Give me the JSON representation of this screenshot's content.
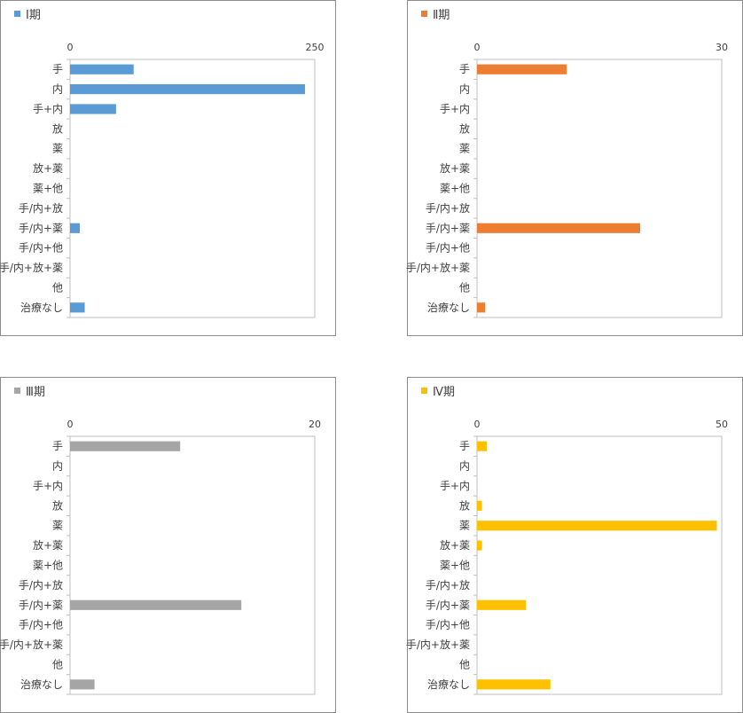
{
  "chart_data": [
    {
      "type": "bar",
      "orientation": "horizontal",
      "categories": [
        "手",
        "内",
        "手+内",
        "放",
        "薬",
        "放+薬",
        "薬+他",
        "手/内+放",
        "手/内+薬",
        "手/内+他",
        "手/内+放+薬",
        "他",
        "治療なし"
      ],
      "series": [
        {
          "name": "Ⅰ期",
          "values": [
            65,
            240,
            47,
            0,
            0,
            0,
            0,
            0,
            10,
            0,
            0,
            0,
            15
          ]
        }
      ],
      "xlim": [
        0,
        250
      ],
      "xticks": [
        "0",
        "250"
      ],
      "color": "#5b9bd5",
      "legend": "top-left"
    },
    {
      "type": "bar",
      "orientation": "horizontal",
      "categories": [
        "手",
        "内",
        "手+内",
        "放",
        "薬",
        "放+薬",
        "薬+他",
        "手/内+放",
        "手/内+薬",
        "手/内+他",
        "手/内+放+薬",
        "他",
        "治療なし"
      ],
      "series": [
        {
          "name": "Ⅱ期",
          "values": [
            11,
            0,
            0,
            0,
            0,
            0,
            0,
            0,
            20,
            0,
            0,
            0,
            1
          ]
        }
      ],
      "xlim": [
        0,
        30
      ],
      "xticks": [
        "0",
        "30"
      ],
      "color": "#ed7d31",
      "legend": "top-left"
    },
    {
      "type": "bar",
      "orientation": "horizontal",
      "categories": [
        "手",
        "内",
        "手+内",
        "放",
        "薬",
        "放+薬",
        "薬+他",
        "手/内+放",
        "手/内+薬",
        "手/内+他",
        "手/内+放+薬",
        "他",
        "治療なし"
      ],
      "series": [
        {
          "name": "Ⅲ期",
          "values": [
            9,
            0,
            0,
            0,
            0,
            0,
            0,
            0,
            14,
            0,
            0,
            0,
            2
          ]
        }
      ],
      "xlim": [
        0,
        20
      ],
      "xticks": [
        "0",
        "20"
      ],
      "color": "#a5a5a5",
      "legend": "top-left"
    },
    {
      "type": "bar",
      "orientation": "horizontal",
      "categories": [
        "手",
        "内",
        "手+内",
        "放",
        "薬",
        "放+薬",
        "薬+他",
        "手/内+放",
        "手/内+薬",
        "手/内+他",
        "手/内+放+薬",
        "他",
        "治療なし"
      ],
      "series": [
        {
          "name": "Ⅳ期",
          "values": [
            2,
            0,
            0,
            1,
            49,
            1,
            0,
            0,
            10,
            0,
            0,
            0,
            15
          ]
        }
      ],
      "xlim": [
        0,
        50
      ],
      "xticks": [
        "0",
        "50"
      ],
      "color": "#ffc000",
      "legend": "top-left"
    }
  ]
}
